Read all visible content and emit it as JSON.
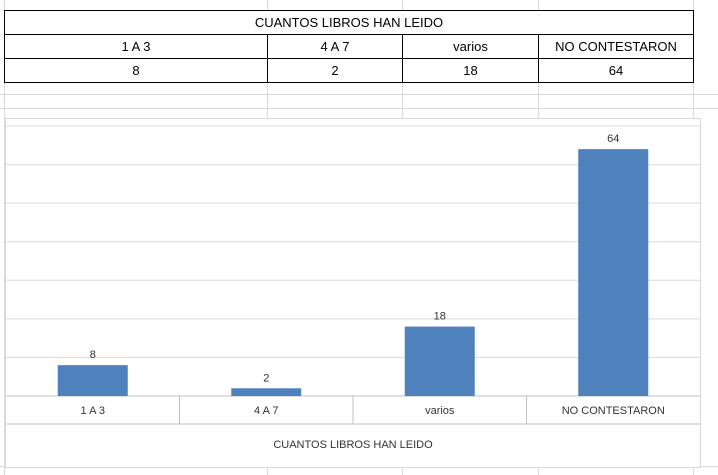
{
  "table": {
    "title": "CUANTOS LIBROS HAN LEIDO",
    "headers": [
      "1 A 3",
      "4 A 7",
      "varios",
      "NO CONTESTARON"
    ],
    "values": [
      "8",
      "2",
      "18",
      "64"
    ]
  },
  "chart_data": {
    "type": "bar",
    "title": "",
    "xlabel": "CUANTOS LIBROS HAN LEIDO",
    "ylabel": "",
    "categories": [
      "1 A 3",
      "4 A 7",
      "varios",
      "NO CONTESTARON"
    ],
    "values": [
      8,
      2,
      18,
      64
    ],
    "ylim": [
      0,
      70
    ],
    "grid": true,
    "legend": "none",
    "color": "#4f81bd"
  }
}
